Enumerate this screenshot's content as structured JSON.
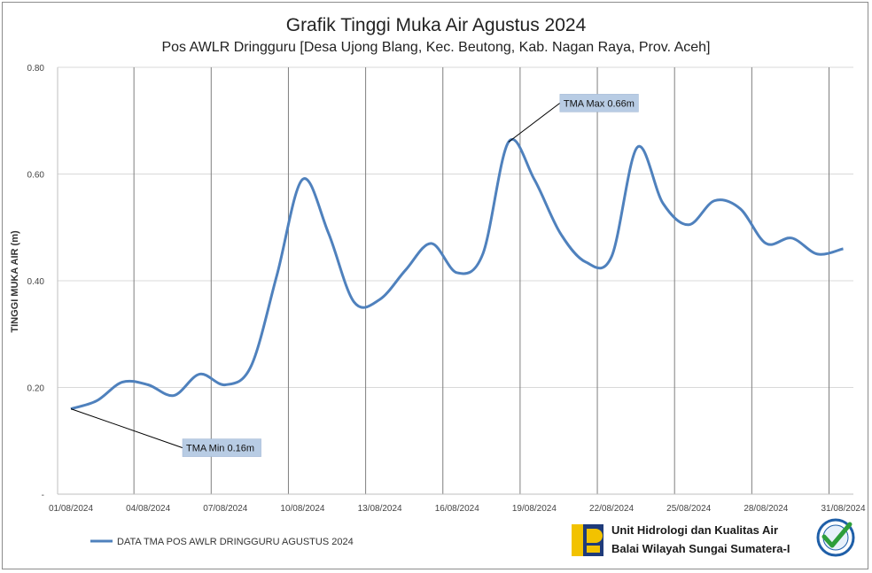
{
  "chart_data": {
    "type": "line",
    "title": "Grafik Tinggi Muka Air Agustus 2024",
    "subtitle": "Pos AWLR Dringguru [Desa Ujong Blang, Kec. Beutong, Kab. Nagan Raya, Prov. Aceh]",
    "ylabel": "TINGGI MUKA AIR (m)",
    "xlabel": "",
    "ylim": [
      0,
      0.8
    ],
    "y_ticks": [
      "-",
      "0.20",
      "0.40",
      "0.60",
      "0.80"
    ],
    "x_ticks": [
      "01/08/2024",
      "04/08/2024",
      "07/08/2024",
      "10/08/2024",
      "13/08/2024",
      "16/08/2024",
      "19/08/2024",
      "22/08/2024",
      "25/08/2024",
      "28/08/2024",
      "31/08/2024"
    ],
    "grid": "vertical and horizontal",
    "legend_position": "bottom-left",
    "series": [
      {
        "name": "DATA TMA POS AWLR DRINGGURU AGUSTUS 2024",
        "color": "#4f81bd",
        "x": [
          1,
          2,
          3,
          4,
          5,
          6,
          7,
          8,
          9,
          10,
          11,
          12,
          13,
          14,
          15,
          16,
          17,
          18,
          19,
          20,
          21,
          22,
          23,
          24,
          25,
          26,
          27,
          28,
          29,
          30,
          31
        ],
        "values": [
          0.16,
          0.175,
          0.21,
          0.205,
          0.185,
          0.225,
          0.205,
          0.24,
          0.41,
          0.59,
          0.49,
          0.36,
          0.365,
          0.42,
          0.47,
          0.415,
          0.45,
          0.66,
          0.59,
          0.49,
          0.435,
          0.445,
          0.65,
          0.545,
          0.505,
          0.55,
          0.535,
          0.47,
          0.48,
          0.45,
          0.46
        ]
      }
    ],
    "annotations": [
      {
        "text": "TMA Max 0.66m",
        "x": 18,
        "y": 0.66
      },
      {
        "text": "TMA Min 0.16m",
        "x": 1,
        "y": 0.16
      }
    ]
  },
  "footer": {
    "org_line1": "Unit Hidrologi dan Kualitas Air",
    "org_line2": "Balai Wilayah Sungai Sumatera-I"
  },
  "colors": {
    "series": "#4f81bd",
    "grid": "#d9d9d9",
    "vgrid": "#7f7f7f",
    "callout": "#b8cce4",
    "logo_yellow": "#f2c200",
    "logo_blue": "#1f3b7a",
    "badge_green": "#2e9e3a"
  }
}
